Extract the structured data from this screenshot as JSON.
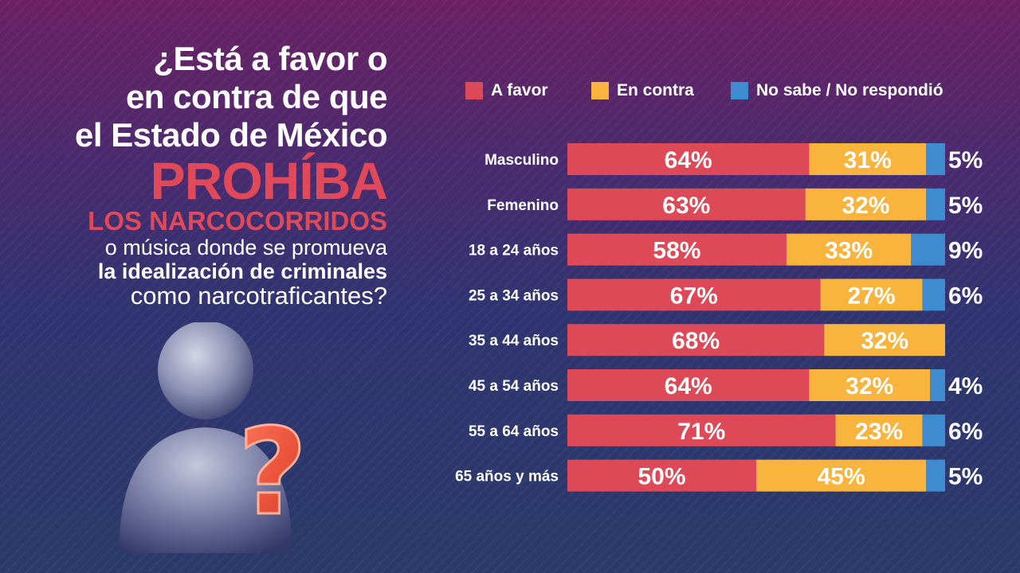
{
  "question": {
    "line1": "¿Está a favor o",
    "line2": "en contra de que",
    "line3": "el Estado de México",
    "line4": "PROHÍBA",
    "line5": "LOS NARCOCORRIDOS",
    "line6": "o música donde se promueva",
    "line7": "la idealización de criminales",
    "line8": "como narcotraficantes?"
  },
  "illustration": {
    "icon": "person-question-mark-icon",
    "glyph": "?"
  },
  "colors": {
    "a_favor": "#dd4956",
    "en_contra": "#f9b43d",
    "no_sabe": "#3e8bd0",
    "highlight_text": "#e0495a"
  },
  "chart_data": {
    "type": "bar",
    "orientation": "horizontal",
    "stacked": true,
    "categories": [
      "Masculino",
      "Femenino",
      "18 a 24 años",
      "25 a 34 años",
      "35 a 44 años",
      "45 a 54 años",
      "55 a 64 años",
      "65 años y más"
    ],
    "series": [
      {
        "name": "A favor",
        "values": [
          64,
          63,
          58,
          67,
          68,
          64,
          71,
          50
        ]
      },
      {
        "name": "En contra",
        "values": [
          31,
          32,
          33,
          27,
          32,
          32,
          23,
          45
        ]
      },
      {
        "name": "No sabe / No respondió",
        "values": [
          5,
          5,
          9,
          6,
          0,
          4,
          6,
          5
        ]
      }
    ],
    "data_labels": {
      "a_favor": [
        "64%",
        "63%",
        "58%",
        "67%",
        "68%",
        "64%",
        "71%",
        "50%"
      ],
      "en_contra": [
        "31%",
        "32%",
        "33%",
        "27%",
        "32%",
        "32%",
        "23%",
        "45%"
      ],
      "no_sabe": [
        "5%",
        "5%",
        "9%",
        "6%",
        "",
        "4%",
        "6%",
        "5%"
      ]
    },
    "xlim": [
      0,
      100
    ],
    "unit": "%",
    "legend_position": "top",
    "grid": false
  }
}
